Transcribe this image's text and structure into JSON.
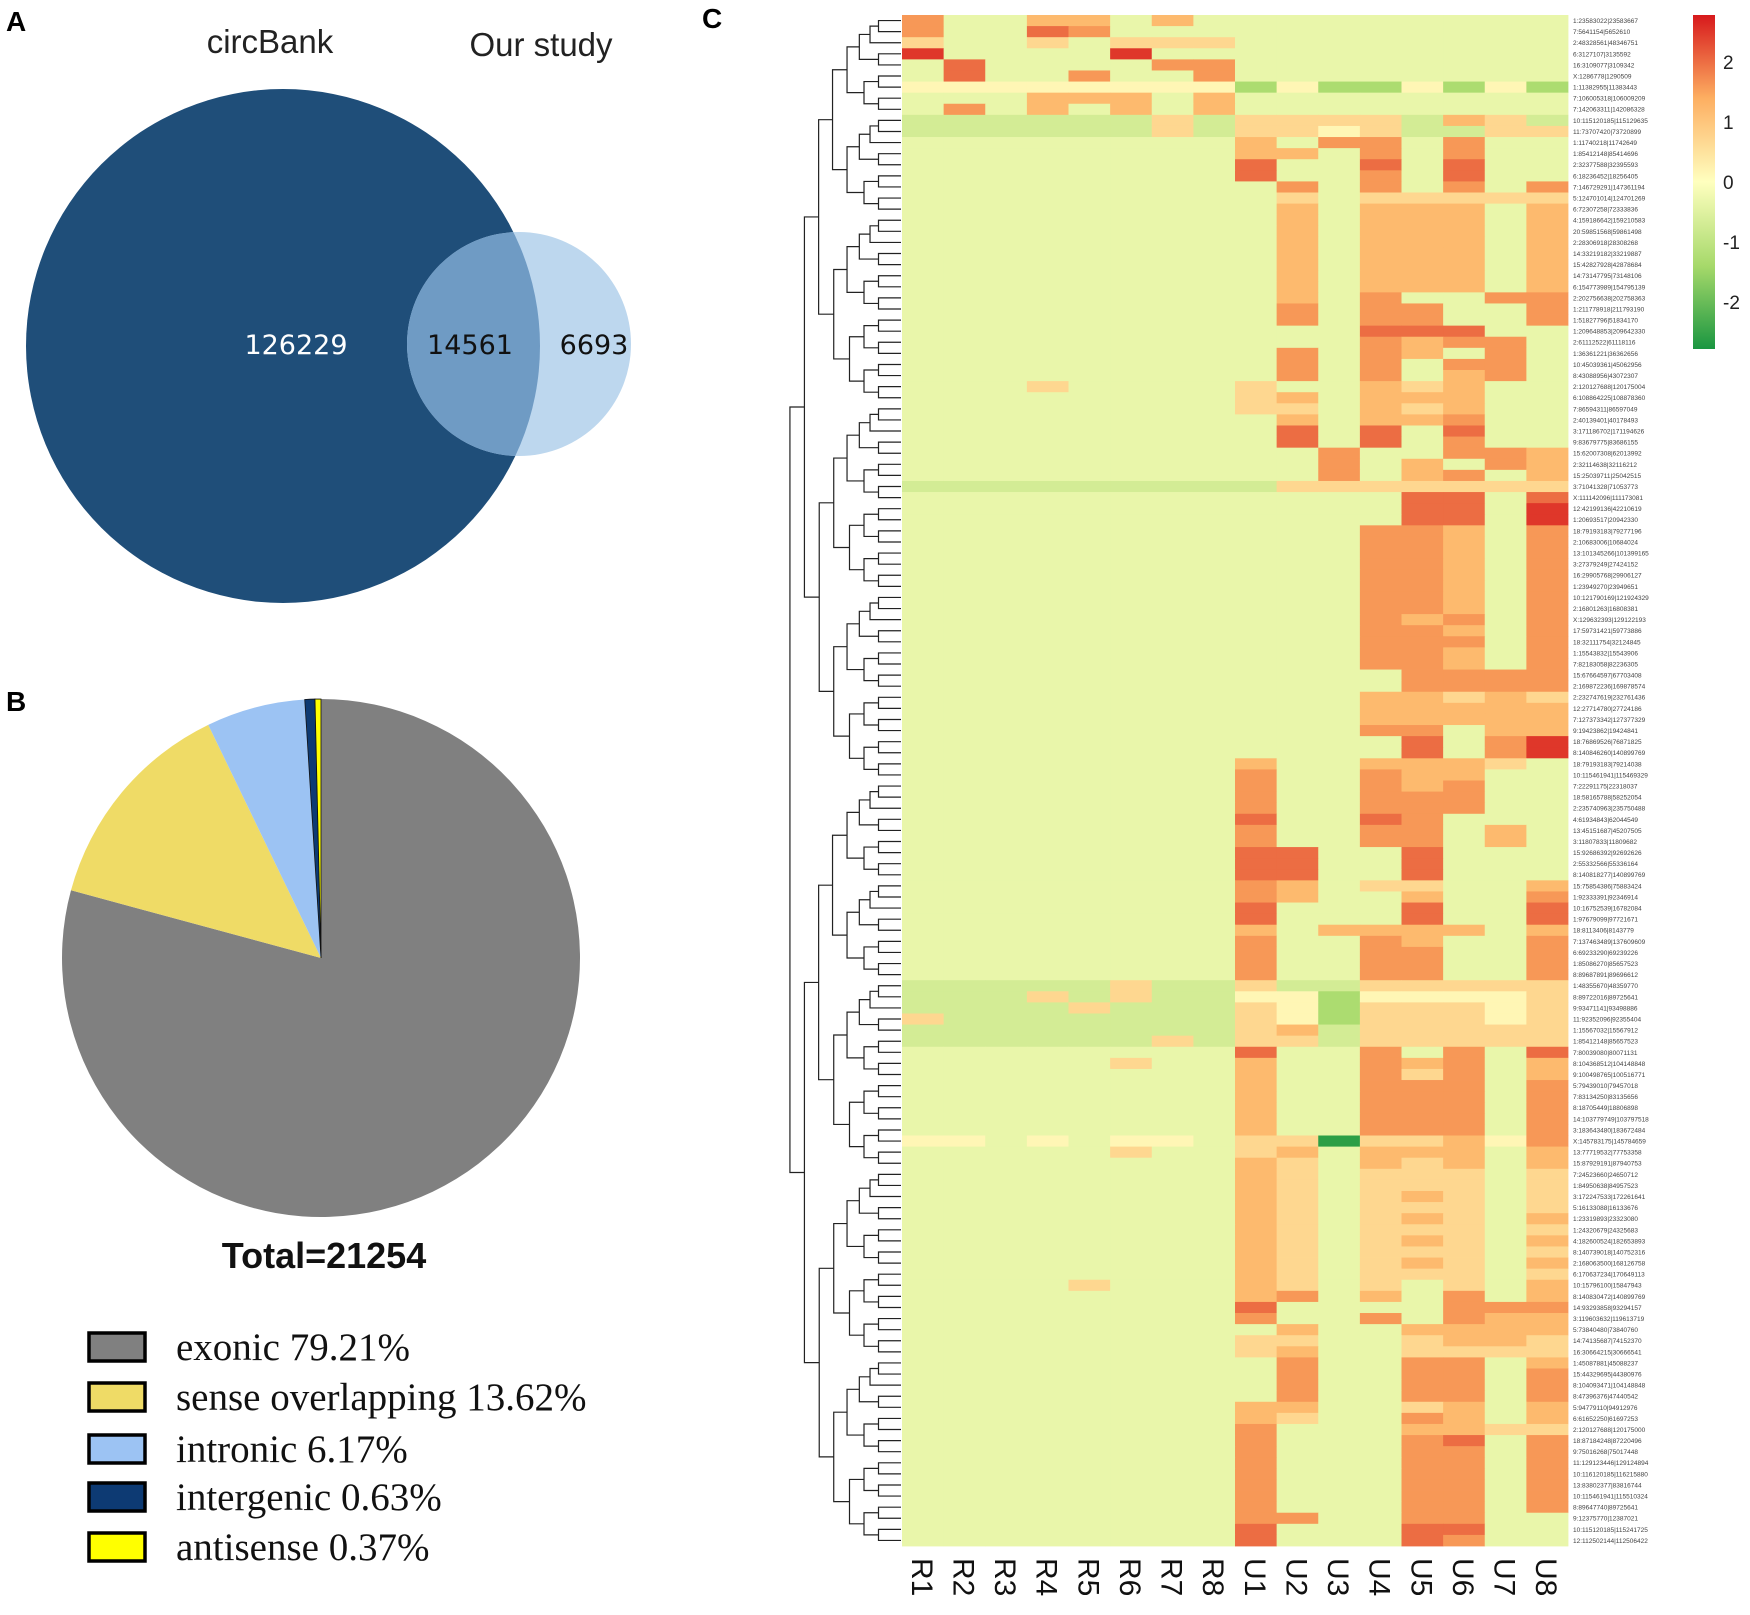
{
  "panels": {
    "a": "A",
    "b": "B",
    "c": "C"
  },
  "chart_data": [
    {
      "type": "venn",
      "sets": [
        {
          "name": "circBank",
          "only": 126229,
          "color": "#1f4e79"
        },
        {
          "name": "Our study",
          "only": 6693,
          "color": "#bdd7ee"
        }
      ],
      "intersection": 14561,
      "intersection_color": "#6f9bc4"
    },
    {
      "type": "pie",
      "title": "Total=21254",
      "start": "top",
      "direction": "clockwise",
      "slices": [
        {
          "label": "exonic",
          "value": 79.21,
          "text": "exonic 79.21%",
          "color": "#808080"
        },
        {
          "label": "sense overlapping",
          "value": 13.62,
          "text": "sense overlapping 13.62%",
          "color": "#efdb66"
        },
        {
          "label": "intronic",
          "value": 6.17,
          "text": "intronic 6.17%",
          "color": "#9cc3f3"
        },
        {
          "label": "intergenic",
          "value": 0.63,
          "text": "intergenic 0.63%",
          "color": "#0d3a73"
        },
        {
          "label": "antisense",
          "value": 0.37,
          "text": "antisense 0.37%",
          "color": "#ffff00"
        }
      ],
      "legend": "bottom-left"
    },
    {
      "type": "heatmap",
      "columns": [
        "R1",
        "R2",
        "R3",
        "R4",
        "R5",
        "R6",
        "R7",
        "R8",
        "U1",
        "U2",
        "U3",
        "U4",
        "U5",
        "U6",
        "U7",
        "U8"
      ],
      "colorbar": {
        "ticks": [
          2,
          1,
          0,
          -1,
          -2
        ],
        "range": [
          -2.78,
          2.78
        ],
        "stops": [
          [
            -2.78,
            "#1a9641"
          ],
          [
            -1.4,
            "#a6d96a"
          ],
          [
            0,
            "#ffffbf"
          ],
          [
            1.4,
            "#fdae61"
          ],
          [
            2.78,
            "#d7191c"
          ]
        ]
      },
      "code_values": {
        ".": -0.35,
        "-": -0.7,
        "G": -1.3,
        "K": -2.6,
        "p": 0.15,
        "y": 0.7,
        "o": 1.2,
        "O": 1.6,
        "d": 2.0,
        "r": 2.5
      },
      "row_dendrogram": true,
      "rows": [
        [
          "1:23583022|23583667",
          "O..oo.o........."
        ],
        [
          "7:5641154|5652610",
          "O..dO..........."
        ],
        [
          "2:48328561|48346751",
          "y..y.yyy........"
        ],
        [
          "6:3127107|3135592",
          "r....r.........."
        ],
        [
          "16:3109077|3109342",
          ".d....OO........"
        ],
        [
          "X:1286778|1290509",
          ".d..O..O........"
        ],
        [
          "1:11382955|11383443",
          "ppppppppGpGGpGpG"
        ],
        [
          "7:106005318|106009209",
          "...ooo.o........"
        ],
        [
          "7:142063311|142086328",
          ".O.o.o.o........"
        ],
        [
          "10:115120185|115129635",
          "------y-yyyy-oy-"
        ],
        [
          "11:73707420|73720899",
          "------y-yypy--yy"
        ],
        [
          "1:11740218|11742649",
          "........o.OO.O.."
        ],
        [
          "1:85412148|85414696",
          "........oo.O.O.."
        ],
        [
          "2:32377588|32395593",
          "........d..d.d.."
        ],
        [
          "6:18236452|18256405",
          "........d..O.d.."
        ],
        [
          "7:146729291|147361194",
          ".........O.O.O.O"
        ],
        [
          "5:124701014|124701269",
          ".........y.yyyyy"
        ],
        [
          "6:72307258|72333836",
          ".........o.ooo.o"
        ],
        [
          "4:159186642|159210583",
          ".........o.ooo.o"
        ],
        [
          "20:59851568|59861498",
          ".........o.ooo.o"
        ],
        [
          "2:28306918|28308268",
          ".........o.ooo.o"
        ],
        [
          "14:33219182|33219887",
          ".........o.ooo.o"
        ],
        [
          "15:42827928|42878684",
          ".........o.ooo.o"
        ],
        [
          "14:73147795|73148106",
          ".........o.ooo.o"
        ],
        [
          "6:154773989|154795139",
          ".........o.ooo.o"
        ],
        [
          "2:202756638|202758363",
          ".........o.O..OO"
        ],
        [
          "1:211778918|211793190",
          ".........O.OO..O"
        ],
        [
          "1:51827796|51834170",
          ".........O.OO..O"
        ],
        [
          "1:209648853|209642330",
          "...........ddd.."
        ],
        [
          "2:61112522|61118116",
          "...........OoOO."
        ],
        [
          "1:36361221|36362656",
          ".........O.Oo.O."
        ],
        [
          "10:45039361|45062956",
          ".........O.O.OO."
        ],
        [
          "8:43088956|43072307",
          ".........O.O.oO."
        ],
        [
          "2:120127688|120175004",
          "...y....y..oyo.."
        ],
        [
          "6:108864225|108878360",
          "........yo.ooo.."
        ],
        [
          "7:86594311|86597049",
          "........yy.oyo.."
        ],
        [
          "2:40139401|40178493",
          ".........o.ooO.."
        ],
        [
          "3:171186702|171194626",
          ".........d.d.d.."
        ],
        [
          "9:83679775|83686155",
          ".........d.d.O.."
        ],
        [
          "15:62007308|62013992",
          "..........O..OOo"
        ],
        [
          "2:32114638|32116212",
          "..........O.o.Oo"
        ],
        [
          "15:25039711|25042515",
          "..........O.oO.o"
        ],
        [
          "3:71041328|71053773",
          "---------yyyyyyy"
        ],
        [
          "X:111142096|111173081",
          "............dd.d"
        ],
        [
          "12:42199136|42210619",
          "............dd.r"
        ],
        [
          "1:20693517|20942330",
          "............dd.r"
        ],
        [
          "18:79193183|79277196",
          "...........OOo.O"
        ],
        [
          "2:10683006|10684024",
          "...........OOo.O"
        ],
        [
          "13:101345266|101399165",
          "...........OOo.O"
        ],
        [
          "3:27379249|27424152",
          "...........OOo.O"
        ],
        [
          "16:29905768|29906127",
          "...........OOo.O"
        ],
        [
          "1:23949270|23949651",
          "...........OOo.O"
        ],
        [
          "10:121790169|121924329",
          "...........OOo.O"
        ],
        [
          "2:16801263|16808381",
          "...........OOo.O"
        ],
        [
          "X:129632393|129122193",
          "...........OoO.O"
        ],
        [
          "17:59731421|59773886",
          "...........OOo.O"
        ],
        [
          "18:32111754|32124845",
          "...........OOO.O"
        ],
        [
          "1:15543832|15543906",
          "...........OOo.O"
        ],
        [
          "7:82183058|82236305",
          "...........OOo.O"
        ],
        [
          "15:67664597|67703408",
          "............OOOO"
        ],
        [
          "2:169872236|169878574",
          "............OOOO"
        ],
        [
          "2:232747619|232761436",
          "...........ooyoy"
        ],
        [
          "12:27714780|27724186",
          "...........ooooo"
        ],
        [
          "7:127373342|127377329",
          "...........ooooo"
        ],
        [
          "9:19423862|19424841",
          "...........OO.oo"
        ],
        [
          "18:76869526|76871825",
          "............d.Or"
        ],
        [
          "8:140846260|140899769",
          "............d.Or"
        ],
        [
          "18:79193183|79214038",
          "........o..oooy."
        ],
        [
          "10:115461941|115469329",
          "........O..Ooo.."
        ],
        [
          "7:22291175|22318037",
          "........O..OoO.."
        ],
        [
          "18:58165788|58252054",
          "........O..OOO.."
        ],
        [
          "2:235740963|235750488",
          "........O..OOO.."
        ],
        [
          "4:61934843|62044549",
          "........d..dO..."
        ],
        [
          "13:45151687|45207505",
          "........O..OO.o."
        ],
        [
          "3:11807833|11809682",
          "........O..OO.o."
        ],
        [
          "15:92686392|92692626",
          "........dd..d..."
        ],
        [
          "2:55332566|55336164",
          "........dd..d..."
        ],
        [
          "8:140818277|140899769",
          "........dd..d..."
        ],
        [
          "15:75854386|75883424",
          "........Oo.yy..o"
        ],
        [
          "1:92333391|92346914",
          "........Oo..o..O"
        ],
        [
          "10:16752539|16782084",
          "........d...d..d"
        ],
        [
          "1:97679099|97721671",
          "........d...d..d"
        ],
        [
          "18:8113406|8143779",
          "........o.oooo.o"
        ],
        [
          "7:137463489|137609609",
          "........O..Oo..O"
        ],
        [
          "6:69233290|69239226",
          "........O..OO..O"
        ],
        [
          "1:85086270|85657523",
          "........O..OO..O"
        ],
        [
          "8:89687891|89696612",
          "........O..OO..O"
        ],
        [
          "1:48355670|48359770",
          "-----y--y--yyyyy"
        ],
        [
          "8:89722016|89725641",
          "---y-y--ppGppppy"
        ],
        [
          "9:93471141|93498886",
          "----y---ypGyyypy"
        ],
        [
          "11:92352096|92355404",
          "y-------ypGyyypy"
        ],
        [
          "1:15567032|15567912",
          "--------yo-yyyyy"
        ],
        [
          "1:85412148|85657523",
          "------y-yy-yyyyy"
        ],
        [
          "7:80039080|80071131",
          "........d..O.O.d"
        ],
        [
          "8:104368512|104148848",
          ".....y..o..OoO.o"
        ],
        [
          "9:100498765|100516771",
          "........o..OyO.o"
        ],
        [
          "5:79439010|79457018",
          "........o..OOO.O"
        ],
        [
          "7:83134250|83135656",
          "........o..OOO.O"
        ],
        [
          "8:18705449|18806898",
          "........o..OOO.O"
        ],
        [
          "14:103779749|103797518",
          "........o..OOO.O"
        ],
        [
          "3:183643480|183672484",
          "........o..OOO.O"
        ],
        [
          "X:145783175|145784659",
          "pp.p.pp.yyKyyopO"
        ],
        [
          "13:77719532|77753358",
          ".....y..yo.ooo.o"
        ],
        [
          "15:87929191|87940753",
          "........oy.oyo.o"
        ],
        [
          "7:24523660|24650712",
          "........oy.yyy.y"
        ],
        [
          "1:84950638|84957523",
          "........oy.yyy.y"
        ],
        [
          "3:172247533|172261641",
          "........oy.yoy.y"
        ],
        [
          "5:16133088|16133676",
          "........oy.yyy.y"
        ],
        [
          "1:23319893|23323080",
          "........oy.yoy.o"
        ],
        [
          "1:24320679|24325683",
          "........oy.yyy.y"
        ],
        [
          "4:182600524|182653893",
          "........oy.yoy.o"
        ],
        [
          "8:140739018|140752316",
          "........oy.yyy.y"
        ],
        [
          "2:168063500|168126758",
          "........oy.yoy.o"
        ],
        [
          "6:170637234|170649113",
          "........oy.yyy.y"
        ],
        [
          "10:15796100|15847943",
          "....y...oy.y.y.o"
        ],
        [
          "8:140830472|140899769",
          "........oO.o.O.o"
        ],
        [
          "14:93293858|93294157",
          "........d....OOO"
        ],
        [
          "3:119603632|119613719",
          "........O..O.Ooo"
        ],
        [
          "5:73840480|73840760",
          ".........o..oooo"
        ],
        [
          "14:74135687|74152370",
          "........yy..yooy"
        ],
        [
          "16:30664215|30666541",
          "........yo..yyyy"
        ],
        [
          "1:45087881|45088237",
          ".........O..OO.o"
        ],
        [
          "15:44329695|44380976",
          ".........O..OO.O"
        ],
        [
          "8:104093471|104148848",
          ".........O..OO.O"
        ],
        [
          "8:47396376|47440542",
          ".........O..OO.O"
        ],
        [
          "5:94779110|94912976",
          "........oo..yo.o"
        ],
        [
          "6:61652250|61697253",
          "........oy..Oo.o"
        ],
        [
          "2:120127688|120175000",
          "........O...ooyy"
        ],
        [
          "18:87184248|87220496",
          "........O...Od.O"
        ],
        [
          "9:75016268|75017448",
          "........O...OO.O"
        ],
        [
          "11:129123446|129124894",
          "........O...OO.O"
        ],
        [
          "10:116120185|116215880",
          "........O...OO.O"
        ],
        [
          "13:83802377|83816744",
          "........O...OO.O"
        ],
        [
          "10:115461941|115510324",
          "........O...OO.O"
        ],
        [
          "8:89647740|89725641",
          "........O...OO.O"
        ],
        [
          "9:12375770|12387021",
          "........OO..OO.."
        ],
        [
          "10:115120185|115241725",
          "........d...dd.."
        ],
        [
          "12:112502144|112506422",
          "........d...dO.."
        ]
      ]
    }
  ]
}
